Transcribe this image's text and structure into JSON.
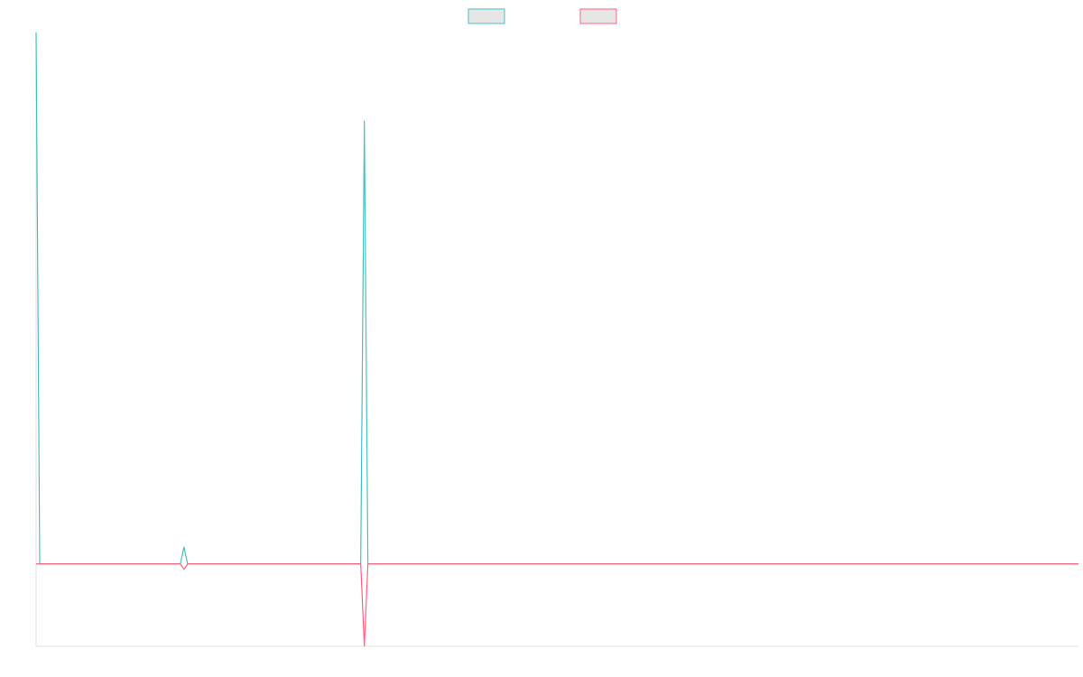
{
  "chart_data": {
    "type": "line",
    "x": [
      0,
      1,
      40,
      41,
      42,
      90,
      91,
      92,
      289
    ],
    "series": [
      {
        "color": "#4bc0c0",
        "values": [
          100,
          0,
          0,
          3.2,
          0,
          0,
          83.4,
          0,
          0
        ]
      },
      {
        "color": "#ff6384",
        "values": [
          0,
          0,
          0,
          -1,
          0,
          0,
          -15.5,
          0,
          0
        ]
      }
    ],
    "xlim": [
      0,
      289
    ],
    "ylim": [
      -15.5,
      100
    ],
    "legend": "top"
  }
}
